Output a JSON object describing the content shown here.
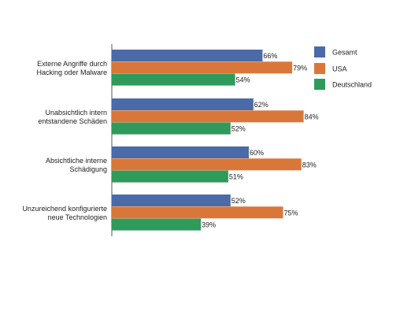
{
  "chart_data": {
    "type": "bar",
    "orientation": "horizontal",
    "title": "",
    "xlabel": "",
    "ylabel": "",
    "xlim": [
      0,
      100
    ],
    "value_suffix": "%",
    "grid": false,
    "legend_position": "top-right",
    "categories": [
      [
        "Externe Angriffe durch",
        "Hacking oder Malware"
      ],
      [
        "Unabsichtlich intern",
        "entstandene Schäden"
      ],
      [
        "Absichtliche interne",
        "Schädigung"
      ],
      [
        "Unzureichend konfigurierte",
        "neue Technologien"
      ]
    ],
    "series": [
      {
        "name": "Gesamt",
        "color": "#4a6aa8",
        "values": [
          66,
          62,
          60,
          52
        ]
      },
      {
        "name": "USA",
        "color": "#d9773a",
        "values": [
          79,
          84,
          83,
          75
        ]
      },
      {
        "name": "Deutschland",
        "color": "#2f9a5a",
        "values": [
          54,
          52,
          51,
          39
        ]
      }
    ]
  }
}
